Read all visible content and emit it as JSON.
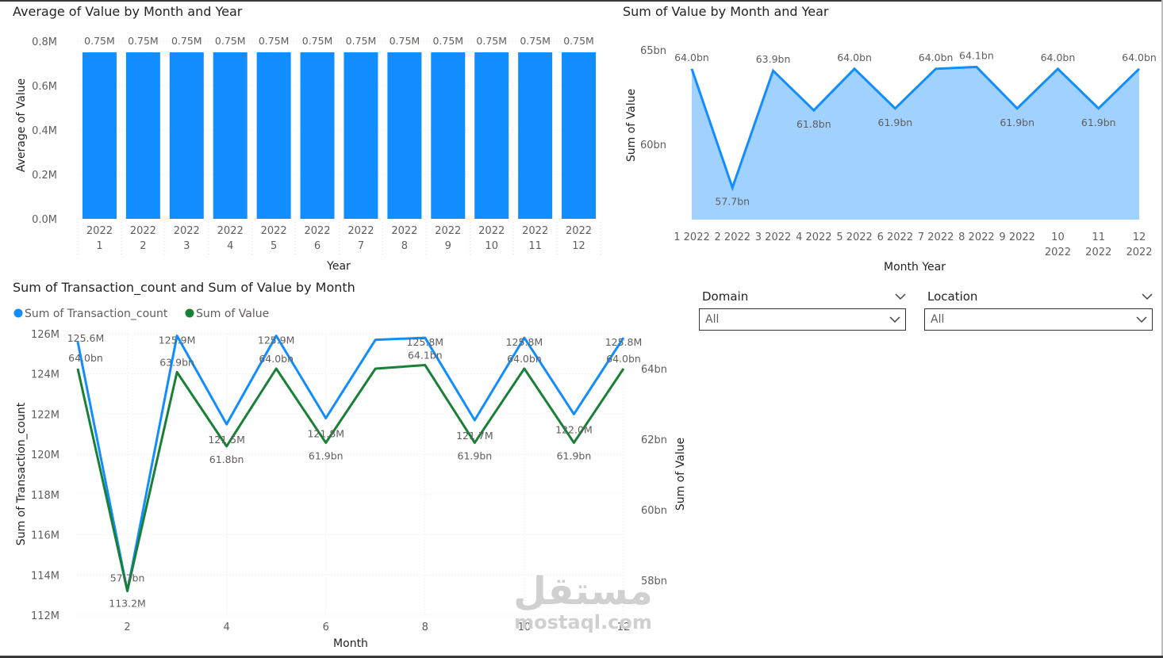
{
  "chart_data": [
    {
      "id": "bar",
      "type": "bar",
      "title": "Average of Value by Month and Year",
      "xlabel": "Year",
      "ylabel": "Average of Value",
      "yticks": [
        "0.0M",
        "0.2M",
        "0.4M",
        "0.6M",
        "0.8M"
      ],
      "ylim": [
        0,
        0.8
      ],
      "categories_year": [
        "2022",
        "2022",
        "2022",
        "2022",
        "2022",
        "2022",
        "2022",
        "2022",
        "2022",
        "2022",
        "2022",
        "2022"
      ],
      "categories_month": [
        "1",
        "2",
        "3",
        "4",
        "5",
        "6",
        "7",
        "8",
        "9",
        "10",
        "11",
        "12"
      ],
      "values": [
        0.75,
        0.75,
        0.75,
        0.75,
        0.75,
        0.75,
        0.75,
        0.75,
        0.75,
        0.75,
        0.75,
        0.75
      ],
      "labels": [
        "0.75M",
        "0.75M",
        "0.75M",
        "0.75M",
        "0.75M",
        "0.75M",
        "0.75M",
        "0.75M",
        "0.75M",
        "0.75M",
        "0.75M",
        "0.75M"
      ],
      "color": "#118DFF"
    },
    {
      "id": "area",
      "type": "area",
      "title": "Sum of Value by Month and Year",
      "xlabel": "Month Year",
      "ylabel": "Sum of Value",
      "yticks": [
        "60bn",
        "65bn"
      ],
      "ytick_values": [
        60,
        65
      ],
      "ylim": [
        56,
        65
      ],
      "categories_line1": [
        "1 2022",
        "2 2022",
        "3 2022",
        "4 2022",
        "5 2022",
        "6 2022",
        "7 2022",
        "8 2022",
        "9 2022",
        "10",
        "11",
        "12"
      ],
      "categories_line2": [
        "",
        "",
        "",
        "",
        "",
        "",
        "",
        "",
        "",
        "2022",
        "2022",
        "2022"
      ],
      "values": [
        64.0,
        57.7,
        63.9,
        61.8,
        64.0,
        61.9,
        64.0,
        64.1,
        61.9,
        64.0,
        61.9,
        64.0
      ],
      "labels": [
        "64.0bn",
        "57.7bn",
        "63.9bn",
        "61.8bn",
        "64.0bn",
        "61.9bn",
        "64.0bn",
        "64.1bn",
        "61.9bn",
        "64.0bn",
        "61.9bn",
        "64.0bn"
      ],
      "line_color": "#118DFF",
      "fill_color": "#A0D1FF"
    },
    {
      "id": "combo",
      "type": "line",
      "title": "Sum of Transaction_count and Sum of Value by Month",
      "xlabel": "Month",
      "ylabel": "Sum of Transaction_count",
      "y2label": "Sum of Value",
      "x": [
        1,
        2,
        3,
        4,
        5,
        6,
        7,
        8,
        9,
        10,
        11,
        12
      ],
      "xticks": [
        "2",
        "4",
        "6",
        "8",
        "10",
        "12"
      ],
      "xtick_values": [
        2,
        4,
        6,
        8,
        10,
        12
      ],
      "yticks": [
        "112M",
        "114M",
        "116M",
        "118M",
        "120M",
        "122M",
        "124M",
        "126M"
      ],
      "ytick_values": [
        112,
        114,
        116,
        118,
        120,
        122,
        124,
        126
      ],
      "ylim": [
        112,
        126.2
      ],
      "y2ticks": [
        "58bn",
        "60bn",
        "62bn",
        "64bn"
      ],
      "y2tick_values": [
        58,
        60,
        62,
        64
      ],
      "y2lim": [
        56.95,
        65
      ],
      "series": [
        {
          "name": "Sum of Transaction_count",
          "color": "#118DFF",
          "values": [
            125.6,
            113.2,
            125.9,
            121.5,
            125.9,
            121.8,
            125.7,
            125.8,
            121.7,
            125.8,
            122.0,
            125.8
          ],
          "labels": [
            "125.6M",
            "113.2M",
            "125.9M",
            "121.5M",
            "125.9M",
            "121.8M",
            "",
            "125.8M",
            "121.7M",
            "125.8M",
            "122.0M",
            "125.8M"
          ]
        },
        {
          "name": "Sum of Value",
          "color": "#1A7F37",
          "values": [
            64.0,
            57.7,
            63.9,
            61.8,
            64.0,
            61.9,
            64.0,
            64.1,
            61.9,
            64.0,
            61.9,
            64.0
          ],
          "labels": [
            "64.0bn",
            "57.7bn",
            "63.9bn",
            "61.8bn",
            "64.0bn",
            "61.9bn",
            "",
            "64.1bn",
            "61.9bn",
            "64.0bn",
            "61.9bn",
            "64.0bn"
          ]
        }
      ]
    }
  ],
  "slicers": {
    "domain": {
      "label": "Domain",
      "value": "All"
    },
    "location": {
      "label": "Location",
      "value": "All"
    }
  },
  "watermark": {
    "logo": "مستقل",
    "url": "mostaql.com"
  }
}
